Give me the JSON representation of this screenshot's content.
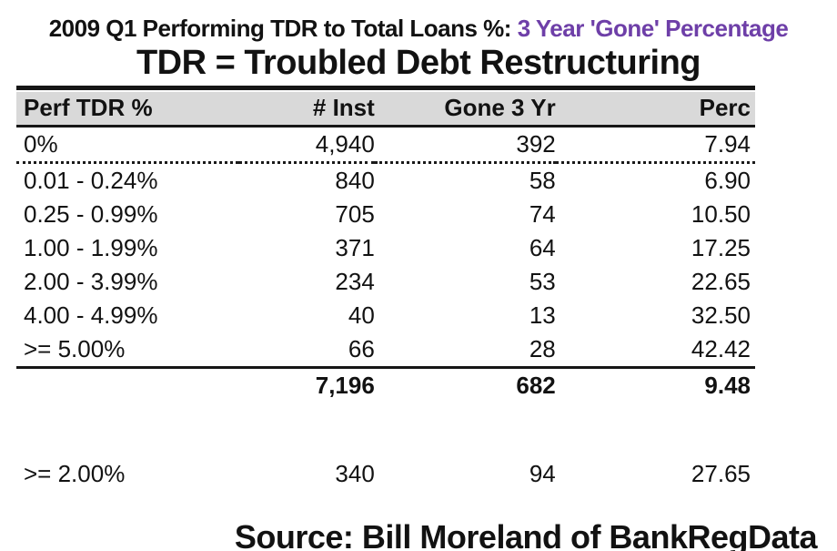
{
  "page": {
    "title_prefix": "2009 Q1 Performing TDR to Total Loans %:",
    "title_highlight": "3 Year 'Gone' Percentage",
    "subtitle": "TDR = Troubled Debt Restructuring",
    "source": "Source: Bill Moreland of BankRegData"
  },
  "colors": {
    "highlight_purple": "#6e3fa8",
    "header_bg": "#d9d9d9",
    "text_black": "#121212"
  },
  "chart_data": {
    "type": "table",
    "title": "2009 Q1 Performing TDR to Total Loans %: 3 Year 'Gone' Percentage",
    "subtitle": "TDR = Troubled Debt Restructuring",
    "columns": [
      "Perf TDR %",
      "# Inst",
      "Gone 3 Yr",
      "Perc"
    ],
    "rows": [
      [
        "0%",
        "4,940",
        "392",
        "7.94"
      ],
      [
        "0.01 - 0.24%",
        "840",
        "58",
        "6.90"
      ],
      [
        "0.25 - 0.99%",
        "705",
        "74",
        "10.50"
      ],
      [
        "1.00 - 1.99%",
        "371",
        "64",
        "17.25"
      ],
      [
        "2.00 - 3.99%",
        "234",
        "53",
        "22.65"
      ],
      [
        "4.00 - 4.99%",
        "40",
        "13",
        "32.50"
      ],
      [
        ">= 5.00%",
        "66",
        "28",
        "42.42"
      ]
    ],
    "totals_row": [
      "",
      "7,196",
      "682",
      "9.48"
    ],
    "summary_row": [
      ">= 2.00%",
      "340",
      "94",
      "27.65"
    ],
    "source": "Source: Bill Moreland of BankRegData"
  }
}
